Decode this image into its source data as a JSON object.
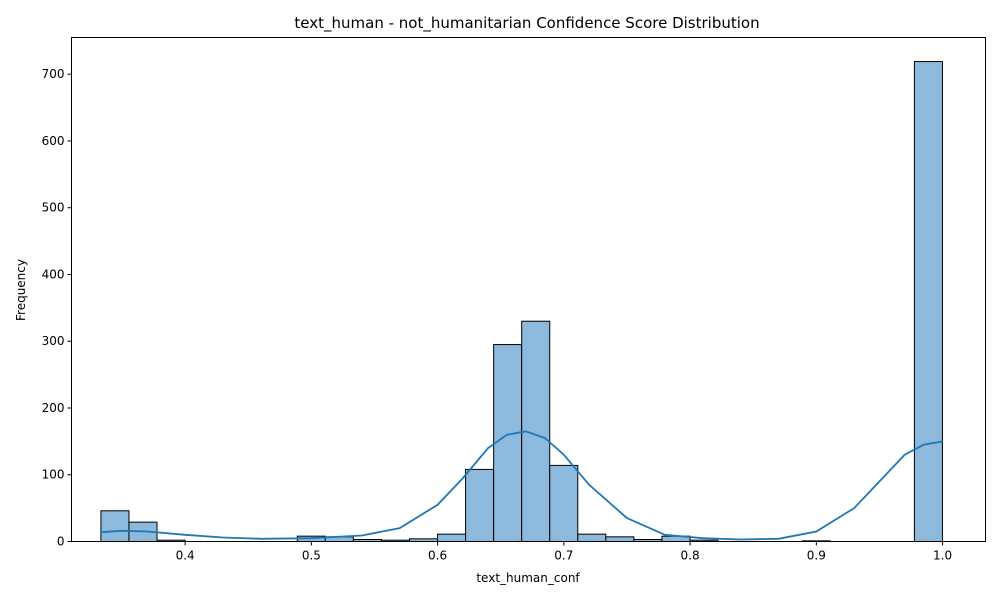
{
  "chart_data": {
    "type": "bar",
    "title": "text_human - not_humanitarian Confidence Score Distribution",
    "xlabel": "text_human_conf",
    "ylabel": "Frequency",
    "xlim": [
      0.31,
      1.034
    ],
    "ylim": [
      0,
      755
    ],
    "xticks": [
      "0.4",
      "0.5",
      "0.6",
      "0.7",
      "0.8",
      "0.9",
      "1.0"
    ],
    "xtick_values": [
      0.4,
      0.5,
      0.6,
      0.7,
      0.8,
      0.9,
      1.0
    ],
    "yticks": [
      "0",
      "100",
      "200",
      "300",
      "400",
      "500",
      "600",
      "700"
    ],
    "ytick_values": [
      0,
      100,
      200,
      300,
      400,
      500,
      600,
      700
    ],
    "bin_start": 0.3333,
    "bin_width": 0.02222,
    "values": [
      46,
      29,
      2,
      0,
      0,
      0,
      0,
      8,
      7,
      3,
      2,
      4,
      11,
      108,
      295,
      330,
      114,
      11,
      7,
      3,
      8,
      2,
      0,
      0,
      0,
      1,
      0,
      0,
      0,
      719
    ],
    "kde": {
      "x": [
        0.3333,
        0.35,
        0.37,
        0.4,
        0.43,
        0.46,
        0.5,
        0.54,
        0.57,
        0.6,
        0.62,
        0.64,
        0.655,
        0.67,
        0.685,
        0.7,
        0.72,
        0.75,
        0.78,
        0.81,
        0.84,
        0.87,
        0.9,
        0.93,
        0.95,
        0.97,
        0.985,
        1.0
      ],
      "y": [
        14,
        16,
        15,
        10,
        6,
        4,
        5,
        9,
        20,
        55,
        95,
        140,
        160,
        165,
        155,
        130,
        85,
        35,
        10,
        5,
        3,
        4,
        15,
        50,
        90,
        130,
        145,
        150
      ]
    },
    "grid": false,
    "legend": "none",
    "colors": {
      "bar": "#8cb9dc",
      "kde": "#1f77b4"
    }
  }
}
